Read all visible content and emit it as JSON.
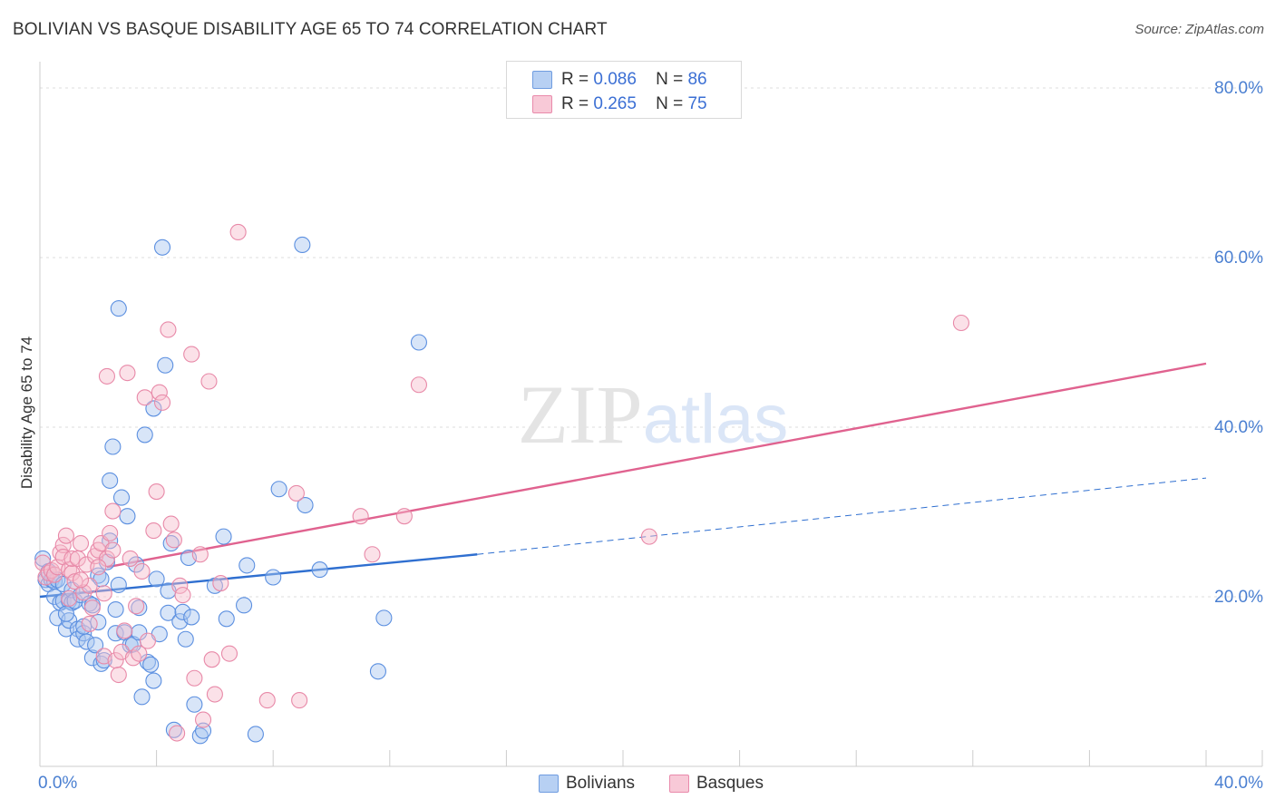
{
  "chart_data": {
    "type": "scatter",
    "title": "BOLIVIAN VS BASQUE DISABILITY AGE 65 TO 74 CORRELATION CHART",
    "source": "Source: ZipAtlas.com",
    "xlabel": "",
    "ylabel": "Disability Age 65 to 74",
    "xlim": [
      0,
      40
    ],
    "ylim": [
      0,
      80
    ],
    "x_tick_labels": [
      "0.0%",
      "40.0%"
    ],
    "y_tick_values": [
      20,
      40,
      60,
      80
    ],
    "y_tick_labels": [
      "20.0%",
      "40.0%",
      "60.0%",
      "80.0%"
    ],
    "grid": true,
    "watermark": "ZIPatlas",
    "legend": [
      {
        "r_label": "R =",
        "r_value": "0.086",
        "n_label": "N =",
        "n_value": "86"
      },
      {
        "r_label": "R =",
        "r_value": "0.265",
        "n_label": "N =",
        "n_value": "75"
      }
    ],
    "series": [
      {
        "name": "Bolivians",
        "color": "#5b8fe0",
        "fill": "#a9c6f0",
        "trend": {
          "x0": 0,
          "y0": 20.0,
          "x1": 15,
          "y1": 25.0,
          "dash_x1": 40,
          "dash_y1": 34.0,
          "color": "#2f6fd0"
        },
        "points": [
          [
            0.1,
            24.5
          ],
          [
            0.2,
            22
          ],
          [
            0.3,
            21.5
          ],
          [
            0.3,
            23
          ],
          [
            0.4,
            22
          ],
          [
            0.5,
            21.8
          ],
          [
            0.5,
            20
          ],
          [
            0.6,
            22
          ],
          [
            0.6,
            17.5
          ],
          [
            0.7,
            19.3
          ],
          [
            0.8,
            19.5
          ],
          [
            0.8,
            21.5
          ],
          [
            0.9,
            16.2
          ],
          [
            1.0,
            17.2
          ],
          [
            1.0,
            19.5
          ],
          [
            1.1,
            19.3
          ],
          [
            1.1,
            20.8
          ],
          [
            1.2,
            19.5
          ],
          [
            1.3,
            16.2
          ],
          [
            1.3,
            15.0
          ],
          [
            1.4,
            20.2
          ],
          [
            1.5,
            15.7
          ],
          [
            1.6,
            14.7
          ],
          [
            1.7,
            19.2
          ],
          [
            1.8,
            12.8
          ],
          [
            1.8,
            19
          ],
          [
            1.9,
            14.3
          ],
          [
            2.0,
            22.5
          ],
          [
            2.1,
            22.1
          ],
          [
            2.1,
            12.1
          ],
          [
            2.2,
            12.5
          ],
          [
            2.3,
            24.1
          ],
          [
            2.4,
            26.6
          ],
          [
            2.4,
            33.7
          ],
          [
            2.5,
            37.7
          ],
          [
            2.6,
            15.7
          ],
          [
            2.6,
            18.5
          ],
          [
            2.7,
            54.0
          ],
          [
            2.7,
            21.4
          ],
          [
            2.8,
            31.7
          ],
          [
            2.9,
            15.8
          ],
          [
            3.0,
            29.5
          ],
          [
            3.1,
            14.3
          ],
          [
            3.2,
            14.4
          ],
          [
            3.3,
            23.8
          ],
          [
            3.4,
            15.8
          ],
          [
            3.4,
            18.7
          ],
          [
            3.5,
            8.2
          ],
          [
            3.6,
            39.1
          ],
          [
            3.7,
            12.3
          ],
          [
            3.9,
            42.2
          ],
          [
            3.9,
            10.1
          ],
          [
            4.0,
            22.1
          ],
          [
            4.1,
            15.6
          ],
          [
            4.2,
            61.2
          ],
          [
            4.3,
            47.3
          ],
          [
            4.4,
            18.1
          ],
          [
            4.4,
            20.7
          ],
          [
            4.5,
            26.3
          ],
          [
            4.6,
            4.3
          ],
          [
            4.8,
            17.1
          ],
          [
            4.9,
            18.2
          ],
          [
            5.1,
            24.6
          ],
          [
            5.2,
            17.6
          ],
          [
            5.3,
            7.3
          ],
          [
            5.5,
            3.6
          ],
          [
            5.6,
            4.2
          ],
          [
            6.0,
            21.3
          ],
          [
            6.3,
            27.1
          ],
          [
            6.4,
            17.4
          ],
          [
            7.1,
            23.7
          ],
          [
            7.4,
            3.8
          ],
          [
            8.0,
            22.3
          ],
          [
            8.2,
            32.7
          ],
          [
            9.1,
            30.8
          ],
          [
            9.6,
            23.2
          ],
          [
            9.0,
            61.5
          ],
          [
            11.6,
            11.2
          ],
          [
            11.8,
            17.5
          ],
          [
            13.0,
            50.0
          ],
          [
            2.0,
            17.0
          ],
          [
            1.5,
            16.5
          ],
          [
            0.9,
            18.0
          ],
          [
            3.8,
            12.0
          ],
          [
            5.0,
            15.0
          ],
          [
            7.0,
            19.0
          ]
        ]
      },
      {
        "name": "Basques",
        "color": "#e889a8",
        "fill": "#f6bccd",
        "trend": {
          "x0": 2.3,
          "y0": 23.5,
          "x1": 40,
          "y1": 47.5,
          "color": "#e0628f"
        },
        "points": [
          [
            0.1,
            24.0
          ],
          [
            0.2,
            22.3
          ],
          [
            0.3,
            22.8
          ],
          [
            0.4,
            23.1
          ],
          [
            0.5,
            22.6
          ],
          [
            0.6,
            23.5
          ],
          [
            0.7,
            25.2
          ],
          [
            0.8,
            26.1
          ],
          [
            0.8,
            24.7
          ],
          [
            0.9,
            27.2
          ],
          [
            1.0,
            23.2
          ],
          [
            1.1,
            22.8
          ],
          [
            1.1,
            24.5
          ],
          [
            1.2,
            21.8
          ],
          [
            1.3,
            24.5
          ],
          [
            1.4,
            26.3
          ],
          [
            1.5,
            20.5
          ],
          [
            1.6,
            23.8
          ],
          [
            1.7,
            21.3
          ],
          [
            1.7,
            16.8
          ],
          [
            1.8,
            18.7
          ],
          [
            1.9,
            24.8
          ],
          [
            2.0,
            25.5
          ],
          [
            2.1,
            26.3
          ],
          [
            2.2,
            20.4
          ],
          [
            2.2,
            13.0
          ],
          [
            2.3,
            46.0
          ],
          [
            2.3,
            24.5
          ],
          [
            2.4,
            27.5
          ],
          [
            2.5,
            25.5
          ],
          [
            2.5,
            30.1
          ],
          [
            2.6,
            12.5
          ],
          [
            2.7,
            10.8
          ],
          [
            2.8,
            13.5
          ],
          [
            2.9,
            16.0
          ],
          [
            3.0,
            46.4
          ],
          [
            3.1,
            24.5
          ],
          [
            3.2,
            12.8
          ],
          [
            3.3,
            18.9
          ],
          [
            3.4,
            13.3
          ],
          [
            3.6,
            43.5
          ],
          [
            3.7,
            14.8
          ],
          [
            3.9,
            27.8
          ],
          [
            4.0,
            32.4
          ],
          [
            4.1,
            44.1
          ],
          [
            4.2,
            42.9
          ],
          [
            4.4,
            51.5
          ],
          [
            4.5,
            28.6
          ],
          [
            4.6,
            26.7
          ],
          [
            4.7,
            3.9
          ],
          [
            4.8,
            21.3
          ],
          [
            4.9,
            20.2
          ],
          [
            5.2,
            48.6
          ],
          [
            5.3,
            10.4
          ],
          [
            5.5,
            25.0
          ],
          [
            5.6,
            5.5
          ],
          [
            5.8,
            45.4
          ],
          [
            5.9,
            12.6
          ],
          [
            6.0,
            8.5
          ],
          [
            6.2,
            21.6
          ],
          [
            6.5,
            13.3
          ],
          [
            6.8,
            63.0
          ],
          [
            7.8,
            7.8
          ],
          [
            8.8,
            32.2
          ],
          [
            8.9,
            7.8
          ],
          [
            11.0,
            29.5
          ],
          [
            11.4,
            25.0
          ],
          [
            12.5,
            29.5
          ],
          [
            13.0,
            45.0
          ],
          [
            20.9,
            27.1
          ],
          [
            31.6,
            52.3
          ],
          [
            1.0,
            19.8
          ],
          [
            3.5,
            23.0
          ],
          [
            2.0,
            23.5
          ],
          [
            1.4,
            22.0
          ]
        ]
      }
    ]
  }
}
